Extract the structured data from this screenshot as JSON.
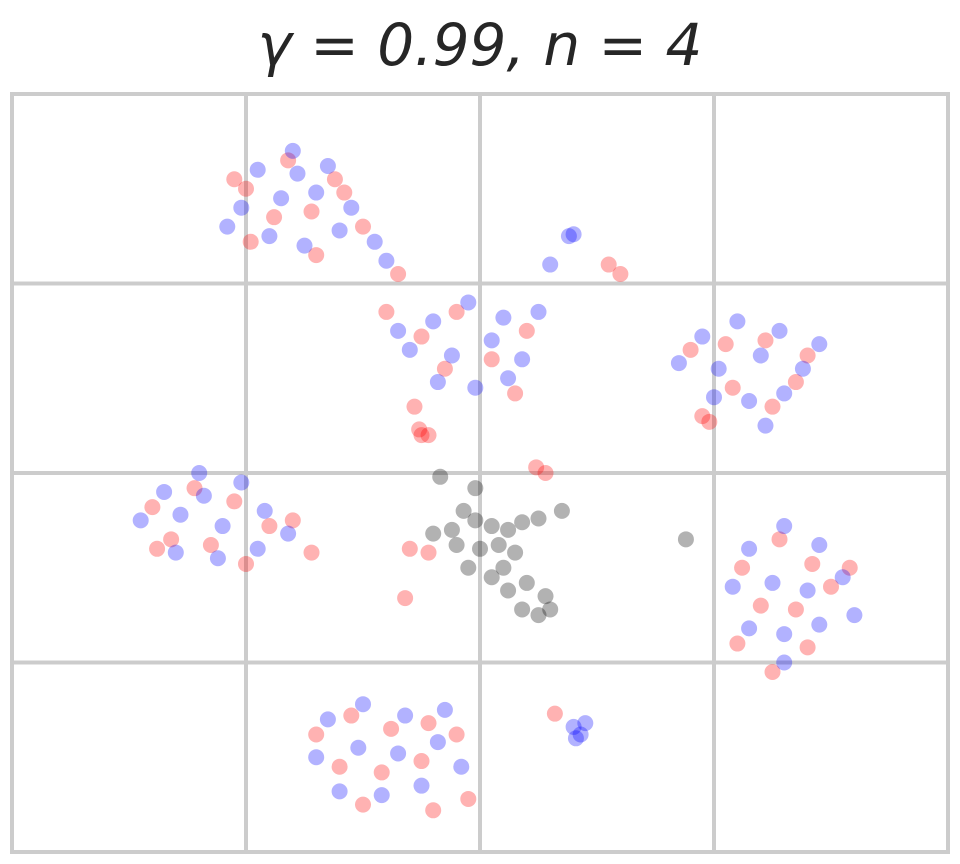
{
  "chart_data": {
    "type": "scatter",
    "title": "γ = 0.99, n = 4",
    "xlim": [
      0,
      4
    ],
    "ylim": [
      0,
      4
    ],
    "xticks": [
      0,
      1,
      2,
      3,
      4
    ],
    "yticks": [
      0,
      1,
      2,
      3,
      4
    ],
    "grid": true,
    "alpha": 0.3,
    "series": [
      {
        "color": "#ff0000",
        "x": [
          1.0,
          1.18,
          1.38,
          1.12,
          1.28,
          1.42,
          1.02,
          1.5,
          1.3,
          1.65,
          0.95,
          1.75,
          1.9,
          2.05,
          2.2,
          1.85,
          2.15,
          1.72,
          1.75,
          2.55,
          2.6,
          1.6,
          2.9,
          3.05,
          3.22,
          3.35,
          3.08,
          3.25,
          2.95,
          2.98,
          3.4,
          0.6,
          0.78,
          0.95,
          1.1,
          0.68,
          0.85,
          1.0,
          1.2,
          1.28,
          0.62,
          3.12,
          3.28,
          3.42,
          3.2,
          3.35,
          3.5,
          3.1,
          3.4,
          3.58,
          3.25,
          1.3,
          1.45,
          1.62,
          1.78,
          1.4,
          1.58,
          1.75,
          1.9,
          1.5,
          1.8,
          1.95,
          1.74,
          1.78,
          2.24,
          2.28,
          1.7,
          1.78,
          1.68,
          2.32
        ],
        "values": [
          3.5,
          3.65,
          3.55,
          3.35,
          3.38,
          3.48,
          3.22,
          3.3,
          3.15,
          3.05,
          3.55,
          2.72,
          2.85,
          2.6,
          2.75,
          2.55,
          2.42,
          2.35,
          2.2,
          3.1,
          3.05,
          2.85,
          2.65,
          2.68,
          2.7,
          2.48,
          2.45,
          2.35,
          2.3,
          2.27,
          2.62,
          1.82,
          1.92,
          1.85,
          1.72,
          1.65,
          1.62,
          1.52,
          1.75,
          1.58,
          1.6,
          1.5,
          1.65,
          1.52,
          1.3,
          1.28,
          1.4,
          1.1,
          1.08,
          1.5,
          0.95,
          0.62,
          0.72,
          0.65,
          0.68,
          0.45,
          0.42,
          0.48,
          0.62,
          0.25,
          0.22,
          0.28,
          2.23,
          2.2,
          2.03,
          2.0,
          1.6,
          1.58,
          1.34,
          0.73
        ]
      },
      {
        "color": "#0000ff",
        "x": [
          1.05,
          1.2,
          1.35,
          0.98,
          1.15,
          1.3,
          1.45,
          1.1,
          1.25,
          1.4,
          0.92,
          1.22,
          1.55,
          1.6,
          1.8,
          1.95,
          2.1,
          1.7,
          1.88,
          2.05,
          2.18,
          1.82,
          1.98,
          2.12,
          1.65,
          2.25,
          2.3,
          2.38,
          2.4,
          2.95,
          3.1,
          3.28,
          2.85,
          3.02,
          3.2,
          3.38,
          3.0,
          3.15,
          3.3,
          3.45,
          3.22,
          0.65,
          0.8,
          0.98,
          0.55,
          0.72,
          0.9,
          1.08,
          0.7,
          0.88,
          1.05,
          1.18,
          0.82,
          3.15,
          3.3,
          3.45,
          3.08,
          3.25,
          3.4,
          3.55,
          3.15,
          3.3,
          3.45,
          3.3,
          3.6,
          1.35,
          1.5,
          1.68,
          1.85,
          1.3,
          1.48,
          1.65,
          1.82,
          1.4,
          1.58,
          1.75,
          1.92,
          2.4,
          2.43,
          2.45,
          2.41
        ],
        "values": [
          3.6,
          3.7,
          3.62,
          3.4,
          3.45,
          3.48,
          3.4,
          3.25,
          3.2,
          3.28,
          3.3,
          3.58,
          3.22,
          3.12,
          2.8,
          2.9,
          2.82,
          2.65,
          2.62,
          2.7,
          2.6,
          2.48,
          2.45,
          2.5,
          2.75,
          2.85,
          3.1,
          3.25,
          3.26,
          2.72,
          2.8,
          2.75,
          2.58,
          2.55,
          2.62,
          2.55,
          2.4,
          2.38,
          2.42,
          2.68,
          2.25,
          1.9,
          2.0,
          1.95,
          1.75,
          1.78,
          1.72,
          1.8,
          1.58,
          1.55,
          1.6,
          1.68,
          1.88,
          1.6,
          1.72,
          1.62,
          1.4,
          1.42,
          1.38,
          1.45,
          1.18,
          1.15,
          1.2,
          1.0,
          1.25,
          0.7,
          0.78,
          0.72,
          0.75,
          0.5,
          0.55,
          0.52,
          0.58,
          0.32,
          0.3,
          0.35,
          0.45,
          0.66,
          0.62,
          0.68,
          0.6
        ]
      },
      {
        "color": "#000000",
        "x": [
          1.83,
          1.93,
          1.98,
          2.05,
          2.12,
          2.18,
          2.25,
          2.35,
          1.8,
          1.9,
          2.0,
          2.08,
          2.15,
          1.95,
          2.05,
          2.12,
          2.2,
          2.28,
          2.18,
          2.25,
          2.3,
          2.1,
          1.88,
          2.88,
          1.98
        ],
        "values": [
          1.98,
          1.8,
          1.75,
          1.72,
          1.7,
          1.74,
          1.76,
          1.8,
          1.68,
          1.62,
          1.6,
          1.62,
          1.58,
          1.5,
          1.45,
          1.38,
          1.42,
          1.35,
          1.28,
          1.25,
          1.28,
          1.5,
          1.7,
          1.65,
          1.92
        ]
      }
    ]
  }
}
